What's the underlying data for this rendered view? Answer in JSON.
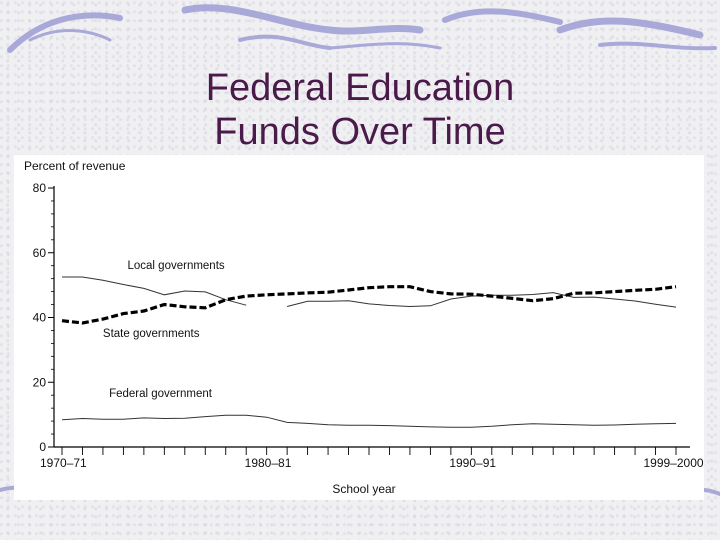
{
  "slide": {
    "title_line1": "Federal Education",
    "title_line2": "Funds Over Time"
  },
  "chart_data": {
    "type": "line",
    "ylabel": "Percent of revenue",
    "xlabel": "School year",
    "ylim": [
      0,
      80
    ],
    "yticks": [
      0,
      20,
      40,
      60,
      80
    ],
    "xlim": [
      1970,
      2000
    ],
    "xtick_labels": [
      {
        "x": 1970,
        "label": "1970–71"
      },
      {
        "x": 1980,
        "label": "1980–81"
      },
      {
        "x": 1990,
        "label": "1990–91"
      },
      {
        "x": 1999,
        "label": "1999–2000"
      }
    ],
    "grid": false,
    "series": [
      {
        "name": "Local governments",
        "style": "solid-thin",
        "color": "#333333",
        "x": [
          1970,
          1971,
          1972,
          1973,
          1974,
          1975,
          1976,
          1977,
          1978,
          1979,
          1980,
          1981,
          1982,
          1983,
          1984,
          1985,
          1986,
          1987,
          1988,
          1989,
          1990,
          1991,
          1992,
          1993,
          1994,
          1995,
          1996,
          1997,
          1998,
          1999,
          2000
        ],
        "values": [
          52.5,
          52.5,
          51.5,
          50.2,
          49,
          47,
          48.2,
          47.9,
          45.5,
          43.8,
          null,
          43.4,
          45,
          45,
          45.2,
          44.2,
          43.7,
          43.4,
          43.6,
          45.7,
          46.6,
          46.9,
          46.9,
          47.1,
          47.7,
          46.2,
          46.3,
          45.7,
          45.1,
          44.1,
          43.2
        ]
      },
      {
        "name": "State governments",
        "style": "dashed-thick",
        "color": "#000000",
        "x": [
          1970,
          1971,
          1972,
          1973,
          1974,
          1975,
          1976,
          1977,
          1978,
          1979,
          1980,
          1981,
          1982,
          1983,
          1984,
          1985,
          1986,
          1987,
          1988,
          1989,
          1990,
          1991,
          1992,
          1993,
          1994,
          1995,
          1996,
          1997,
          1998,
          1999,
          2000
        ],
        "values": [
          39,
          38.3,
          39.5,
          41.2,
          42,
          44,
          43.3,
          43,
          45.5,
          46.6,
          47,
          47.3,
          47.6,
          47.8,
          48.5,
          49.2,
          49.5,
          49.5,
          48,
          47.3,
          47.2,
          46.6,
          45.9,
          45.2,
          45.8,
          47.5,
          47.6,
          48,
          48.4,
          48.7,
          49.5
        ]
      },
      {
        "name": "Federal government",
        "style": "solid-thin",
        "color": "#333333",
        "x": [
          1970,
          1971,
          1972,
          1973,
          1974,
          1975,
          1976,
          1977,
          1978,
          1979,
          1980,
          1981,
          1982,
          1983,
          1984,
          1985,
          1986,
          1987,
          1988,
          1989,
          1990,
          1991,
          1992,
          1993,
          1994,
          1995,
          1996,
          1997,
          1998,
          1999,
          2000
        ],
        "values": [
          8.4,
          8.8,
          8.6,
          8.6,
          9,
          8.8,
          8.9,
          9.4,
          9.8,
          9.8,
          9.2,
          7.6,
          7.3,
          6.9,
          6.7,
          6.7,
          6.6,
          6.4,
          6.2,
          6.1,
          6.1,
          6.4,
          6.9,
          7.2,
          7,
          6.9,
          6.7,
          6.8,
          7,
          7.2,
          7.3
        ]
      }
    ],
    "annotations": [
      {
        "text": "Local governments",
        "x": 1973.2,
        "y": 55
      },
      {
        "text": "State governments",
        "x": 1972.0,
        "y": 34
      },
      {
        "text": "Federal government",
        "x": 1972.3,
        "y": 15.5
      }
    ]
  }
}
